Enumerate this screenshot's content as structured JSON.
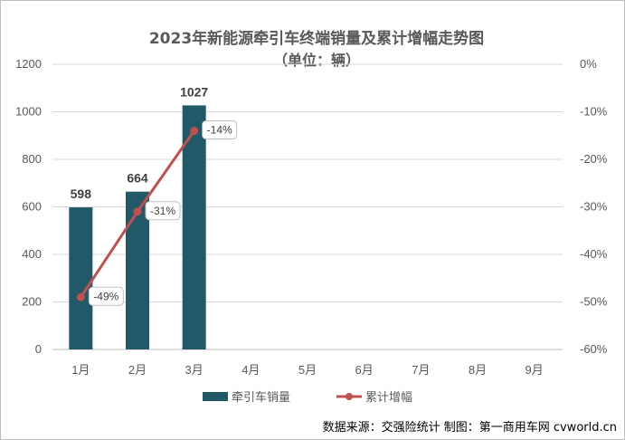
{
  "chart_data": {
    "type": "bar",
    "title": "2023年新能源牵引车终端销量及累计增幅走势图",
    "subtitle": "（单位：辆）",
    "categories": [
      "1月",
      "2月",
      "3月",
      "4月",
      "5月",
      "6月",
      "7月",
      "8月",
      "9月"
    ],
    "series": [
      {
        "name": "牵引车销量",
        "type": "bar",
        "axis": "left",
        "color": "#215968",
        "values": [
          598,
          664,
          1027,
          null,
          null,
          null,
          null,
          null,
          null
        ],
        "labels": [
          "598",
          "664",
          "1027"
        ]
      },
      {
        "name": "累计增幅",
        "type": "line",
        "axis": "right",
        "color": "#C0504D",
        "values": [
          -49,
          -31,
          -14,
          null,
          null,
          null,
          null,
          null,
          null
        ],
        "labels": [
          "-49%",
          "-31%",
          "-14%"
        ]
      }
    ],
    "left_axis": {
      "ylim": [
        0,
        1200
      ],
      "ticks": [
        "0",
        "200",
        "400",
        "600",
        "800",
        "1000",
        "1200"
      ]
    },
    "right_axis": {
      "ylim": [
        -60,
        0
      ],
      "ticks": [
        "-60%",
        "-50%",
        "-40%",
        "-30%",
        "-20%",
        "-10%",
        "0%"
      ]
    },
    "grid": true,
    "legend_position": "bottom",
    "source_note": "数据来源：交强险统计  制图：第一商用车网 cvworld.cn"
  }
}
